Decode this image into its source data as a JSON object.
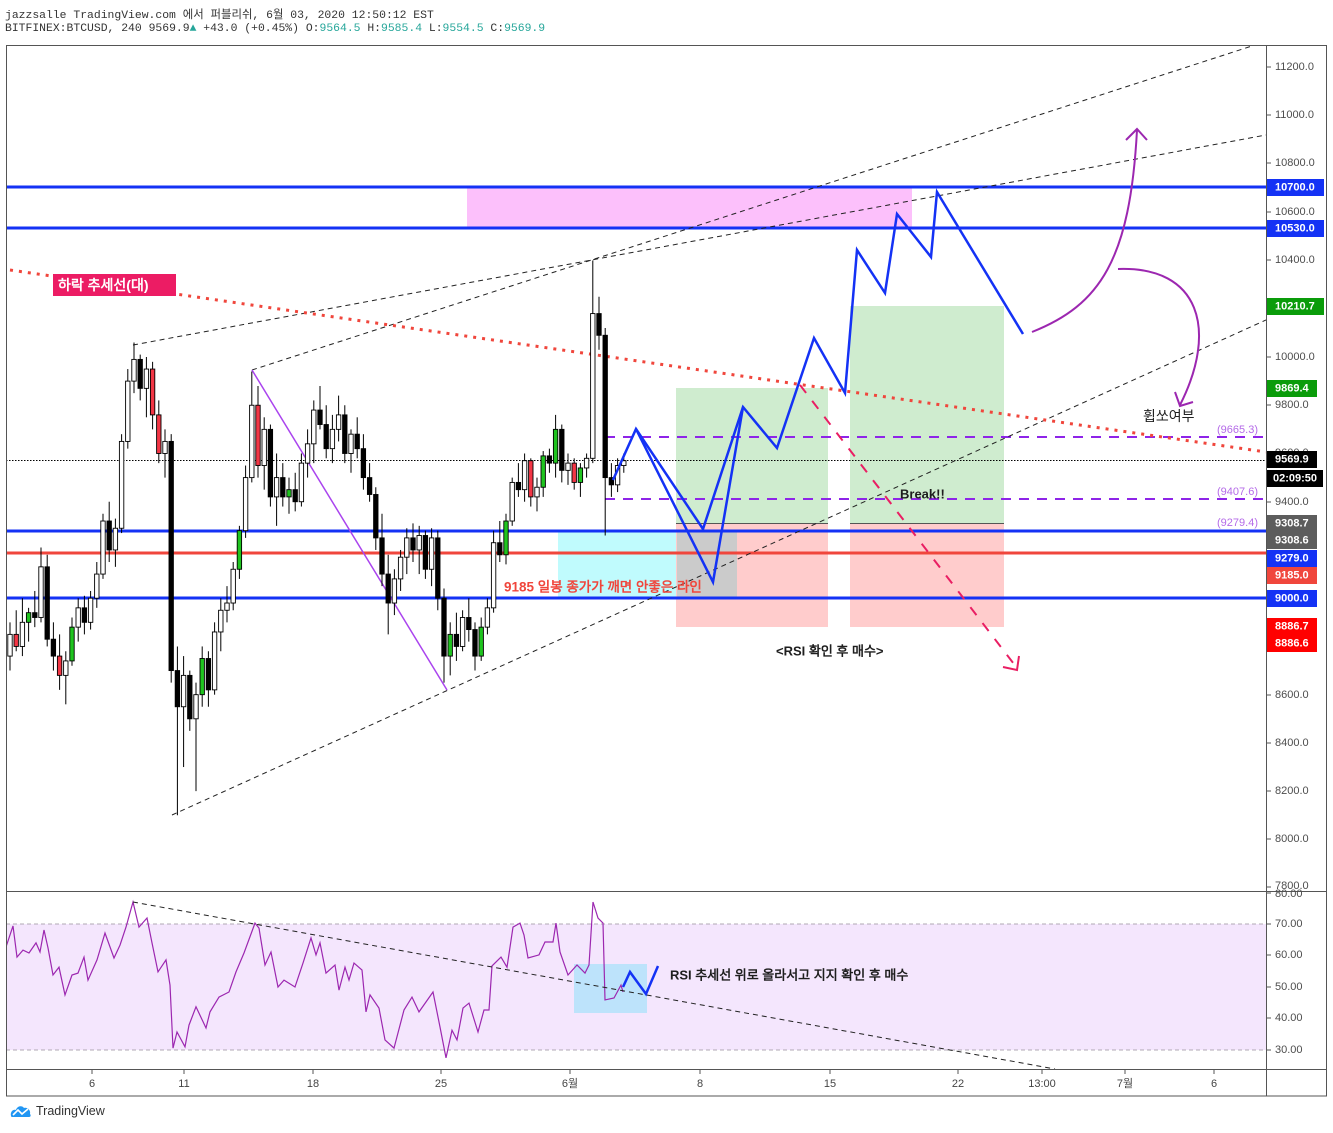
{
  "header": {
    "published": "jazzsalle TradingView.com 에서 퍼블리쉬, 6월 03, 2020 12:50:12 EST",
    "symbol": "BITFINEX:BTCUSD, 240",
    "last": "9569.9",
    "change_icon": "triangle-up",
    "change_glyph": "▲",
    "change": "+43.0 (+0.45%)",
    "ohlc": [
      {
        "k": "O:",
        "v": "9564.5"
      },
      {
        "k": "H:",
        "v": "9585.4"
      },
      {
        "k": "L:",
        "v": "9554.5"
      },
      {
        "k": "C:",
        "v": "9569.9"
      }
    ]
  },
  "colors": {
    "up_teal": "#26a69a",
    "level_blue": "#1432f5",
    "level_red": "#f0463c",
    "target_green": "#0a9c0a",
    "rsi_purple": "#9c27b0",
    "trend_pink": "#e91e63",
    "tag_gray": "#5d5d5d",
    "stop_red": "#ff0000",
    "black": "#000000"
  },
  "price_axis": {
    "ticks": [
      "11200.0",
      "11000.0",
      "10800.0",
      "10600.0",
      "10400.0",
      "10000.0",
      "9800.0",
      "9600.0",
      "9400.0",
      "8600.0",
      "8400.0",
      "8200.0",
      "8000.0",
      "7800.0"
    ]
  },
  "price_tags": [
    {
      "label": "10700.0",
      "color": "#1432f5"
    },
    {
      "label": "10530.0",
      "color": "#1432f5"
    },
    {
      "label": "10210.7",
      "color": "#0a9c0a"
    },
    {
      "label": "9869.4",
      "color": "#0a9c0a"
    },
    {
      "label": "9569.9",
      "color": "#000000"
    },
    {
      "label": "02:09:50",
      "color": "#000000"
    },
    {
      "label": "9308.7",
      "color": "#5d5d5d"
    },
    {
      "label": "9308.6",
      "color": "#5d5d5d"
    },
    {
      "label": "9279.0",
      "color": "#1432f5"
    },
    {
      "label": "9185.0",
      "color": "#f0463c"
    },
    {
      "label": "9000.0",
      "color": "#1432f5"
    },
    {
      "label": "8886.7",
      "color": "#ff0000"
    },
    {
      "label": "8886.6",
      "color": "#ff0000"
    }
  ],
  "rsi_axis": {
    "ticks": [
      "80.00",
      "70.00",
      "60.00",
      "50.00",
      "40.00",
      "30.00"
    ]
  },
  "time_axis": {
    "ticks": [
      "6",
      "11",
      "18",
      "25",
      "6월",
      "8",
      "15",
      "22",
      "13:00",
      "7월",
      "6"
    ]
  },
  "annotations": {
    "downtrend_label": "하락 추세선(대)",
    "support_note": "9185 일봉 종가가 깨면 안좋은 라인",
    "break_note": "Break!!",
    "rsi_buy_note": "<RSI 확인 후 매수>",
    "whipsaw_note": "휩쏘여부",
    "rsi_pane_note": "RSI 추세선 위로 올라서고 지지 확인 후 매수",
    "level_labels": [
      "(9665.3)",
      "(9407.6)",
      "(9279.4)"
    ]
  },
  "footer": {
    "brand": "TradingView",
    "logo_icon": "tradingview-cloud-logo"
  },
  "chart_data": {
    "type": "candlestick",
    "title": "BITFINEX:BTCUSD, 240",
    "xlabel": "",
    "ylabel": "",
    "ylim": [
      7800,
      11300
    ],
    "x_ticks": [
      "6",
      "11",
      "18",
      "25",
      "6월",
      "8",
      "15",
      "22",
      "13:00",
      "7월",
      "6"
    ],
    "y_ticks": [
      7800,
      8000,
      8200,
      8400,
      8600,
      9400,
      9600,
      9800,
      10000,
      10400,
      10600,
      10800,
      11000,
      11200
    ],
    "last_price": 9569.9,
    "candles": [
      [
        8760,
        8900,
        8700,
        8850
      ],
      [
        8850,
        8950,
        8780,
        8800
      ],
      [
        8800,
        9000,
        8760,
        8900
      ],
      [
        8900,
        8960,
        8820,
        8940
      ],
      [
        8940,
        9030,
        8880,
        8920
      ],
      [
        8920,
        9210,
        8900,
        9130
      ],
      [
        9130,
        9180,
        8800,
        8830
      ],
      [
        8830,
        8900,
        8700,
        8760
      ],
      [
        8760,
        8850,
        8620,
        8680
      ],
      [
        8680,
        8780,
        8560,
        8740
      ],
      [
        8740,
        8920,
        8720,
        8880
      ],
      [
        8880,
        9000,
        8820,
        8960
      ],
      [
        8960,
        9010,
        8850,
        8900
      ],
      [
        8900,
        9030,
        8870,
        9000
      ],
      [
        9000,
        9150,
        8960,
        9100
      ],
      [
        9100,
        9350,
        9080,
        9320
      ],
      [
        9320,
        9400,
        9150,
        9200
      ],
      [
        9200,
        9330,
        9130,
        9290
      ],
      [
        9290,
        9680,
        9270,
        9650
      ],
      [
        9650,
        9950,
        9620,
        9900
      ],
      [
        9900,
        10060,
        9850,
        9990
      ],
      [
        9990,
        10010,
        9820,
        9870
      ],
      [
        9870,
        10000,
        9750,
        9950
      ],
      [
        9950,
        9980,
        9700,
        9760
      ],
      [
        9760,
        9820,
        9560,
        9600
      ],
      [
        9600,
        9700,
        9500,
        9650
      ],
      [
        9650,
        9680,
        8650,
        8700
      ],
      [
        8700,
        8800,
        8100,
        8550
      ],
      [
        8550,
        8760,
        8300,
        8680
      ],
      [
        8680,
        8700,
        8450,
        8500
      ],
      [
        8500,
        8650,
        8200,
        8600
      ],
      [
        8600,
        8800,
        8550,
        8750
      ],
      [
        8750,
        8780,
        8550,
        8620
      ],
      [
        8620,
        8900,
        8600,
        8860
      ],
      [
        8860,
        9000,
        8780,
        8950
      ],
      [
        8950,
        9050,
        8900,
        8980
      ],
      [
        8980,
        9150,
        8950,
        9120
      ],
      [
        9120,
        9300,
        9080,
        9280
      ],
      [
        9280,
        9550,
        9250,
        9500
      ],
      [
        9500,
        9940,
        9480,
        9800
      ],
      [
        9800,
        9880,
        9500,
        9550
      ],
      [
        9550,
        9750,
        9450,
        9700
      ],
      [
        9700,
        9720,
        9380,
        9420
      ],
      [
        9420,
        9600,
        9300,
        9500
      ],
      [
        9500,
        9560,
        9380,
        9420
      ],
      [
        9420,
        9500,
        9350,
        9450
      ],
      [
        9450,
        9520,
        9360,
        9400
      ],
      [
        9400,
        9600,
        9380,
        9560
      ],
      [
        9560,
        9700,
        9500,
        9640
      ],
      [
        9640,
        9820,
        9560,
        9780
      ],
      [
        9780,
        9880,
        9700,
        9720
      ],
      [
        9720,
        9800,
        9580,
        9620
      ],
      [
        9620,
        9760,
        9560,
        9700
      ],
      [
        9700,
        9840,
        9650,
        9760
      ],
      [
        9760,
        9800,
        9560,
        9600
      ],
      [
        9600,
        9700,
        9520,
        9680
      ],
      [
        9680,
        9750,
        9580,
        9620
      ],
      [
        9620,
        9680,
        9450,
        9500
      ],
      [
        9500,
        9560,
        9400,
        9430
      ],
      [
        9430,
        9460,
        9200,
        9250
      ],
      [
        9250,
        9350,
        9050,
        9100
      ],
      [
        9100,
        9180,
        8850,
        8980
      ],
      [
        8980,
        9120,
        8930,
        9080
      ],
      [
        9080,
        9200,
        9030,
        9170
      ],
      [
        9170,
        9290,
        9100,
        9250
      ],
      [
        9250,
        9310,
        9150,
        9200
      ],
      [
        9200,
        9300,
        9100,
        9260
      ],
      [
        9260,
        9280,
        9080,
        9120
      ],
      [
        9120,
        9290,
        9050,
        9250
      ],
      [
        9250,
        9280,
        8950,
        9000
      ],
      [
        9000,
        9040,
        8650,
        8760
      ],
      [
        8760,
        8900,
        8680,
        8850
      ],
      [
        8850,
        8940,
        8740,
        8800
      ],
      [
        8800,
        8950,
        8780,
        8920
      ],
      [
        8920,
        9000,
        8820,
        8870
      ],
      [
        8870,
        8900,
        8700,
        8760
      ],
      [
        8760,
        8920,
        8740,
        8880
      ],
      [
        8880,
        9000,
        8850,
        8960
      ],
      [
        8960,
        9280,
        8940,
        9230
      ],
      [
        9230,
        9320,
        9150,
        9180
      ],
      [
        9180,
        9350,
        9140,
        9320
      ],
      [
        9320,
        9500,
        9300,
        9480
      ],
      [
        9480,
        9560,
        9420,
        9450
      ],
      [
        9450,
        9600,
        9400,
        9570
      ],
      [
        9570,
        9580,
        9380,
        9420
      ],
      [
        9420,
        9500,
        9360,
        9460
      ],
      [
        9460,
        9610,
        9420,
        9590
      ],
      [
        9590,
        9620,
        9520,
        9560
      ],
      [
        9560,
        9760,
        9500,
        9700
      ],
      [
        9700,
        9720,
        9480,
        9530
      ],
      [
        9530,
        9600,
        9470,
        9560
      ],
      [
        9560,
        9580,
        9450,
        9480
      ],
      [
        9480,
        9560,
        9420,
        9540
      ],
      [
        9540,
        9600,
        9500,
        9580
      ],
      [
        9580,
        10400,
        9560,
        10180
      ],
      [
        10180,
        10250,
        10030,
        10090
      ],
      [
        10090,
        10120,
        9260,
        9500
      ],
      [
        9500,
        9560,
        9420,
        9470
      ],
      [
        9470,
        9580,
        9440,
        9550
      ],
      [
        9550,
        9600,
        9520,
        9570
      ]
    ],
    "highlight_red": [
      1,
      8,
      23,
      24,
      40,
      84,
      91
    ],
    "highlight_green": [
      3,
      10,
      31,
      37,
      45,
      71,
      76,
      80,
      86,
      88,
      92
    ],
    "horizontal_levels": [
      {
        "price": 10700.0,
        "color": "#1432f5"
      },
      {
        "price": 10530.0,
        "color": "#1432f5"
      },
      {
        "price": 9308.6,
        "color": "#1432f5"
      },
      {
        "price": 9279.0,
        "color": "#f0463c"
      },
      {
        "price": 9000.0,
        "color": "#1432f5"
      }
    ],
    "dashed_levels": [
      9665.3,
      9407.6
    ],
    "positions": [
      {
        "entry": 9308.7,
        "target": 9869.4,
        "stop": 8886.7
      },
      {
        "entry": 9308.6,
        "target": 10210.7,
        "stop": 8886.6
      }
    ],
    "rsi": {
      "ylim": [
        25,
        80
      ],
      "bands": [
        30,
        70
      ],
      "points": [
        [
          6,
          62.7
        ],
        [
          13,
          69.4
        ],
        [
          17,
          59.5
        ],
        [
          23,
          61.7
        ],
        [
          29,
          60.8
        ],
        [
          36,
          64.0
        ],
        [
          40,
          61.1
        ],
        [
          44,
          68.1
        ],
        [
          48,
          62.4
        ],
        [
          53,
          53.8
        ],
        [
          59,
          56.3
        ],
        [
          65,
          47.5
        ],
        [
          72,
          53.8
        ],
        [
          78,
          54.4
        ],
        [
          84,
          59.5
        ],
        [
          88,
          52.2
        ],
        [
          97,
          58.6
        ],
        [
          105,
          67.1
        ],
        [
          114,
          59.2
        ],
        [
          120,
          63.3
        ],
        [
          126,
          69.0
        ],
        [
          133,
          77.0
        ],
        [
          139,
          69.0
        ],
        [
          147,
          71.9
        ],
        [
          152,
          64.0
        ],
        [
          158,
          54.8
        ],
        [
          166,
          58.6
        ],
        [
          170,
          50.6
        ],
        [
          173,
          30.6
        ],
        [
          177,
          35.7
        ],
        [
          185,
          31.0
        ],
        [
          189,
          37.9
        ],
        [
          196,
          43.7
        ],
        [
          206,
          37.0
        ],
        [
          210,
          42.1
        ],
        [
          219,
          46.8
        ],
        [
          229,
          48.4
        ],
        [
          236,
          54.8
        ],
        [
          244,
          60.8
        ],
        [
          255,
          70.3
        ],
        [
          259,
          68.7
        ],
        [
          265,
          57.0
        ],
        [
          271,
          61.1
        ],
        [
          278,
          50.0
        ],
        [
          284,
          52.2
        ],
        [
          295,
          50.0
        ],
        [
          303,
          57.6
        ],
        [
          311,
          65.6
        ],
        [
          316,
          60.2
        ],
        [
          320,
          64.0
        ],
        [
          326,
          54.4
        ],
        [
          335,
          57.0
        ],
        [
          339,
          49.0
        ],
        [
          345,
          56.3
        ],
        [
          349,
          52.2
        ],
        [
          354,
          57.6
        ],
        [
          362,
          55.4
        ],
        [
          366,
          42.1
        ],
        [
          370,
          47.5
        ],
        [
          379,
          43.3
        ],
        [
          385,
          33.2
        ],
        [
          394,
          30.6
        ],
        [
          404,
          42.7
        ],
        [
          412,
          46.8
        ],
        [
          419,
          42.1
        ],
        [
          433,
          48.4
        ],
        [
          440,
          37.3
        ],
        [
          446,
          27.5
        ],
        [
          452,
          36.3
        ],
        [
          457,
          33.2
        ],
        [
          463,
          43.3
        ],
        [
          469,
          44.9
        ],
        [
          478,
          35.7
        ],
        [
          484,
          42.7
        ],
        [
          489,
          42.7
        ],
        [
          492,
          56.7
        ],
        [
          501,
          59.5
        ],
        [
          507,
          56.3
        ],
        [
          513,
          69.0
        ],
        [
          520,
          70.3
        ],
        [
          524,
          66.5
        ],
        [
          528,
          59.2
        ],
        [
          539,
          60.2
        ],
        [
          545,
          64.3
        ],
        [
          553,
          64.3
        ],
        [
          556,
          70.3
        ],
        [
          560,
          61.1
        ],
        [
          568,
          53.8
        ],
        [
          577,
          57.0
        ],
        [
          585,
          54.4
        ],
        [
          589,
          57.0
        ],
        [
          593,
          77.0
        ],
        [
          598,
          71.9
        ],
        [
          603,
          70.3
        ],
        [
          605,
          45.9
        ],
        [
          614,
          46.5
        ],
        [
          621,
          50.6
        ],
        [
          623,
          48.4
        ]
      ]
    }
  }
}
